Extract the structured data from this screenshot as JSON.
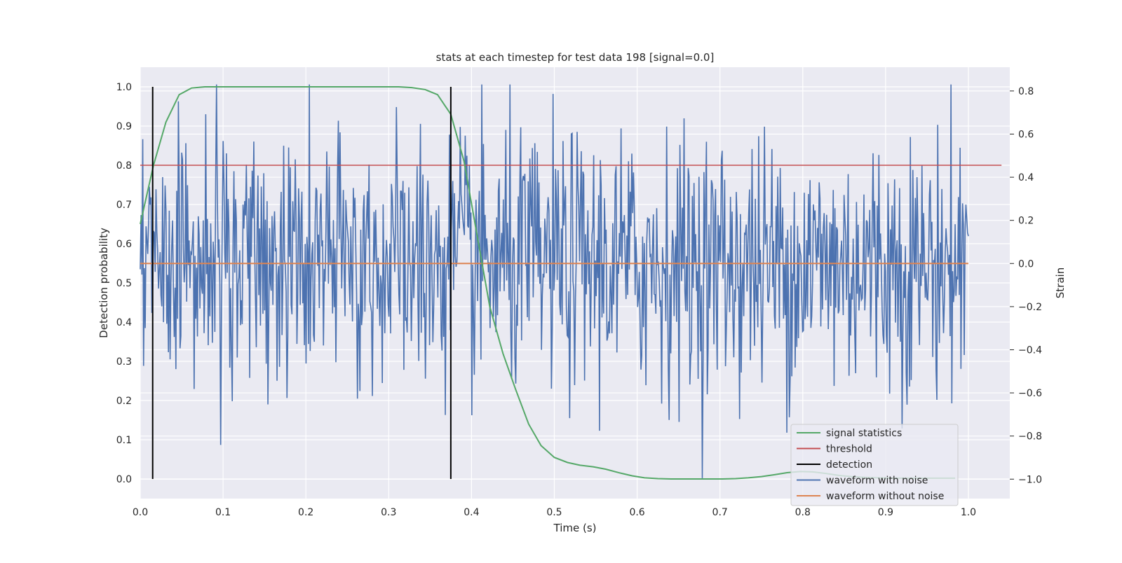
{
  "chart_data": {
    "type": "line",
    "title": "stats at each timestep for test data 198 [signal=0.0]",
    "xlabel": "Time (s)",
    "ylabel": "Detection probability",
    "ylabel_right": "Strain",
    "xlim": [
      0.0,
      1.05
    ],
    "ylim": [
      -0.05,
      1.05
    ],
    "ylim_right": [
      -1.09,
      0.91
    ],
    "x_ticks": [
      "0.0",
      "0.1",
      "0.2",
      "0.3",
      "0.4",
      "0.5",
      "0.6",
      "0.7",
      "0.8",
      "0.9",
      "1.0"
    ],
    "y_ticks": [
      "0.0",
      "0.1",
      "0.2",
      "0.3",
      "0.4",
      "0.5",
      "0.6",
      "0.7",
      "0.8",
      "0.9",
      "1.0"
    ],
    "y_right_ticks": [
      "−1.0",
      "−0.8",
      "−0.6",
      "−0.4",
      "−0.2",
      "0.0",
      "0.2",
      "0.4",
      "0.6",
      "0.8"
    ],
    "grid": true,
    "legend_position": "lower-right",
    "colors": {
      "signal_statistics": "#55a868",
      "threshold": "#c44e52",
      "detection": "#000000",
      "waveform_with_noise": "#4c72b0",
      "waveform_without_noise": "#dd8452",
      "plot_background": "#eaeaf2",
      "grid": "#ffffff"
    },
    "series": [
      {
        "name": "signal statistics",
        "axis": "left",
        "x": [
          0.0,
          0.016,
          0.031,
          0.047,
          0.062,
          0.078,
          0.094,
          0.109,
          0.125,
          0.141,
          0.156,
          0.172,
          0.188,
          0.203,
          0.219,
          0.234,
          0.25,
          0.266,
          0.281,
          0.297,
          0.312,
          0.328,
          0.344,
          0.359,
          0.375,
          0.391,
          0.406,
          0.422,
          0.438,
          0.453,
          0.469,
          0.484,
          0.5,
          0.516,
          0.531,
          0.547,
          0.562,
          0.578,
          0.594,
          0.609,
          0.625,
          0.641,
          0.656,
          0.672,
          0.688,
          0.703,
          0.719,
          0.734,
          0.75,
          0.766,
          0.781,
          0.797,
          0.812,
          0.828,
          0.844,
          0.859,
          0.875,
          0.891,
          0.906,
          0.922,
          0.938,
          0.953,
          0.969,
          0.984
        ],
        "values": [
          0.65,
          0.8,
          0.91,
          0.98,
          0.997,
          1.0,
          1.0,
          1.0,
          1.0,
          1.0,
          1.0,
          1.0,
          1.0,
          1.0,
          1.0,
          1.0,
          1.0,
          1.0,
          1.0,
          1.0,
          1.0,
          0.998,
          0.993,
          0.98,
          0.93,
          0.81,
          0.63,
          0.44,
          0.32,
          0.23,
          0.14,
          0.085,
          0.055,
          0.042,
          0.035,
          0.031,
          0.025,
          0.016,
          0.008,
          0.003,
          0.001,
          0.0,
          0.0,
          0.0,
          0.0,
          0.0,
          0.001,
          0.003,
          0.006,
          0.011,
          0.016,
          0.019,
          0.018,
          0.014,
          0.009,
          0.006,
          0.004,
          0.003,
          0.002,
          0.002,
          0.002,
          0.002,
          0.002,
          0.002
        ]
      },
      {
        "name": "threshold",
        "axis": "left",
        "x": [
          0.0,
          1.04
        ],
        "values": [
          0.8,
          0.8
        ]
      },
      {
        "name": "detection",
        "axis": "left",
        "vertical_lines_x": [
          0.015,
          0.375
        ],
        "y_range": [
          0.0,
          1.0
        ]
      },
      {
        "name": "waveform with noise",
        "axis": "right",
        "x_range": [
          0.0,
          1.0
        ],
        "num_points": 1000,
        "approx_min": -1.0,
        "approx_max": 0.83
      },
      {
        "name": "waveform without noise",
        "axis": "right",
        "x": [
          0.0,
          1.0
        ],
        "values": [
          0.0,
          0.0
        ]
      }
    ]
  }
}
